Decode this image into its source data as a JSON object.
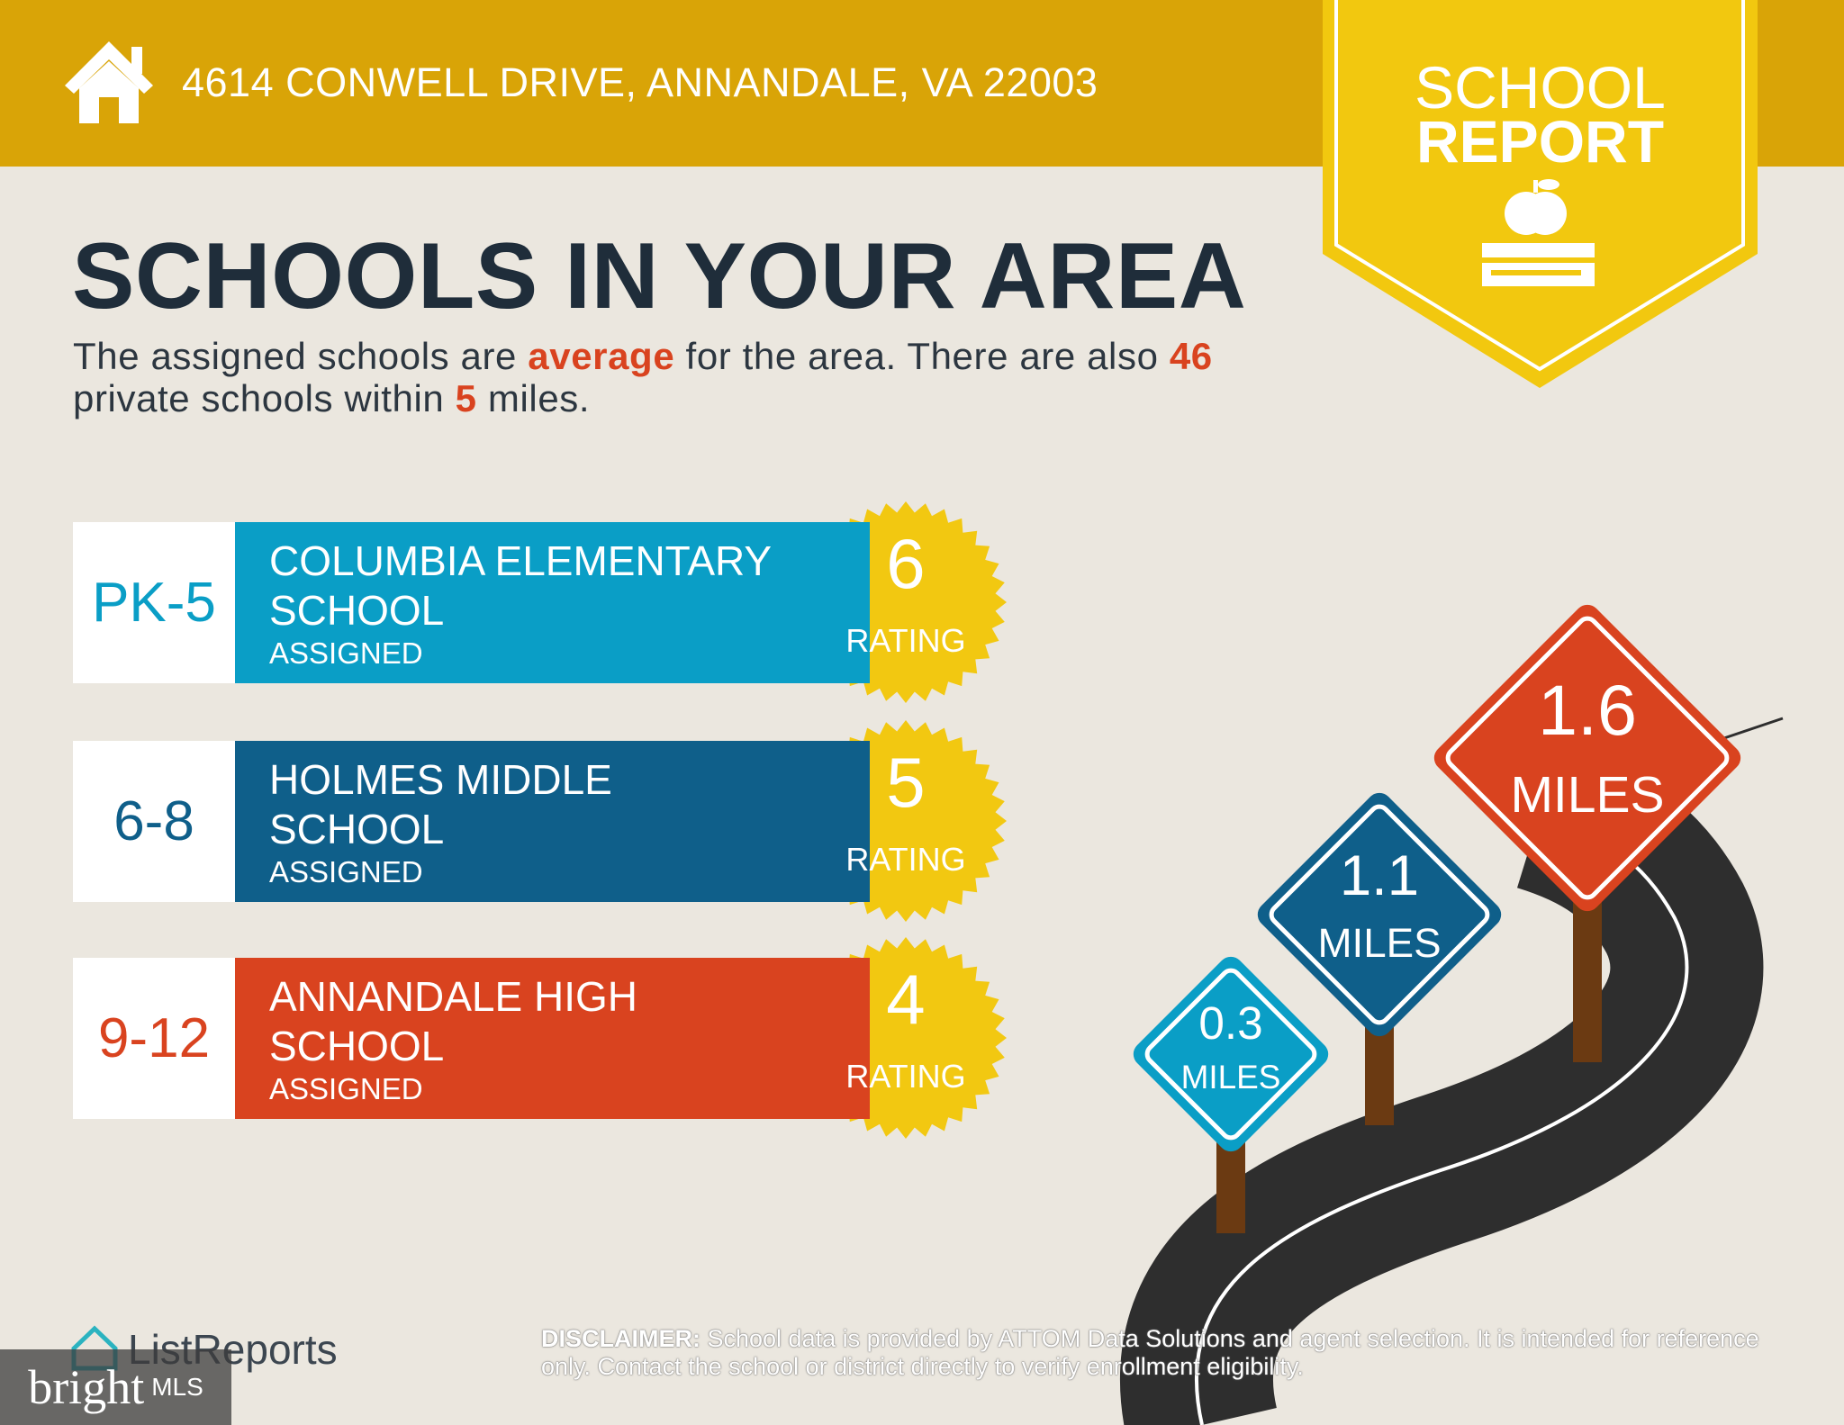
{
  "header": {
    "address": "4614 CONWELL DRIVE, ANNANDALE, VA 22003",
    "badge": [
      "SCHOOL",
      "REPORT"
    ]
  },
  "title": "SCHOOLS IN YOUR AREA",
  "summary": [
    "The assigned schools are ",
    "average",
    " for the area. There are also ",
    "46",
    " private schools within ",
    "5",
    " miles."
  ],
  "schools": [
    {
      "grades": "PK-5",
      "name": "COLUMBIA ELEMENTARY SCHOOL",
      "status": "ASSIGNED",
      "rating": "6",
      "rating_label": "RATING",
      "distance": "0.3",
      "distance_unit": "MILES"
    },
    {
      "grades": "6-8",
      "name": "HOLMES MIDDLE SCHOOL",
      "status": "ASSIGNED",
      "rating": "5",
      "rating_label": "RATING",
      "distance": "1.1",
      "distance_unit": "MILES"
    },
    {
      "grades": "9-12",
      "name": "ANNANDALE HIGH SCHOOL",
      "status": "ASSIGNED",
      "rating": "4",
      "rating_label": "RATING",
      "distance": "1.6",
      "distance_unit": "MILES"
    }
  ],
  "footer": {
    "logo": "ListReports",
    "disclaimer_label": "DISCLAIMER:",
    "disclaimer": " School data is provided by ATTOM Data Solutions and agent selection. It is intended for reference only. Contact the school or district directly to verify enrollment eligibility.",
    "watermark": [
      "bright",
      "MLS"
    ]
  }
}
